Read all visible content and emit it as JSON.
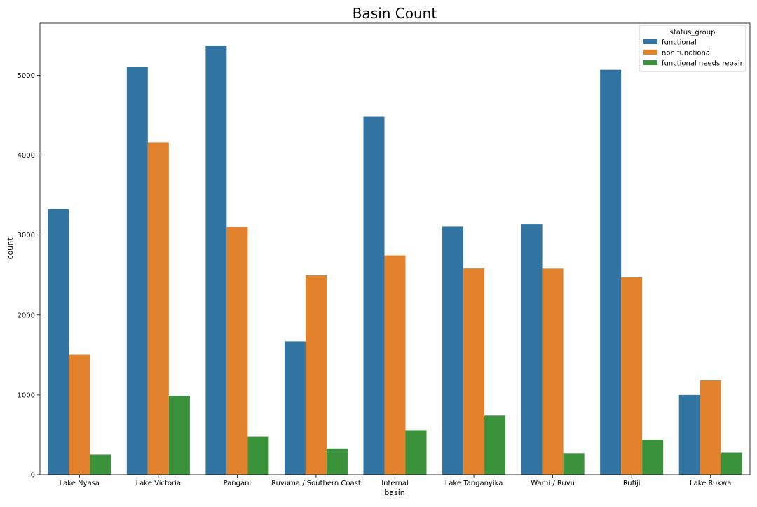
{
  "chart_data": {
    "type": "bar",
    "title": "Basin Count",
    "xlabel": "basin",
    "ylabel": "count",
    "categories": [
      "Lake Nyasa",
      "Lake Victoria",
      "Pangani",
      "Ruvuma / Southern Coast",
      "Internal",
      "Lake Tanganyika",
      "Wami / Ruvu",
      "Rufiji",
      "Lake Rukwa"
    ],
    "series": [
      {
        "name": "functional",
        "color": "#3274a1",
        "values": [
          3324,
          5100,
          5372,
          1670,
          4482,
          3107,
          3136,
          5068,
          1000
        ]
      },
      {
        "name": "non functional",
        "color": "#e1812c",
        "values": [
          1503,
          4159,
          3102,
          2497,
          2746,
          2584,
          2582,
          2471,
          1183
        ]
      },
      {
        "name": "functional needs repair",
        "color": "#3a923a",
        "values": [
          250,
          989,
          477,
          326,
          557,
          742,
          269,
          437,
          276
        ]
      }
    ],
    "ylim": [
      0,
      5652
    ],
    "yticks": [
      0,
      1000,
      2000,
      3000,
      4000,
      5000
    ],
    "grid": false,
    "legend": {
      "title": "status_group",
      "position": "upper right"
    }
  }
}
